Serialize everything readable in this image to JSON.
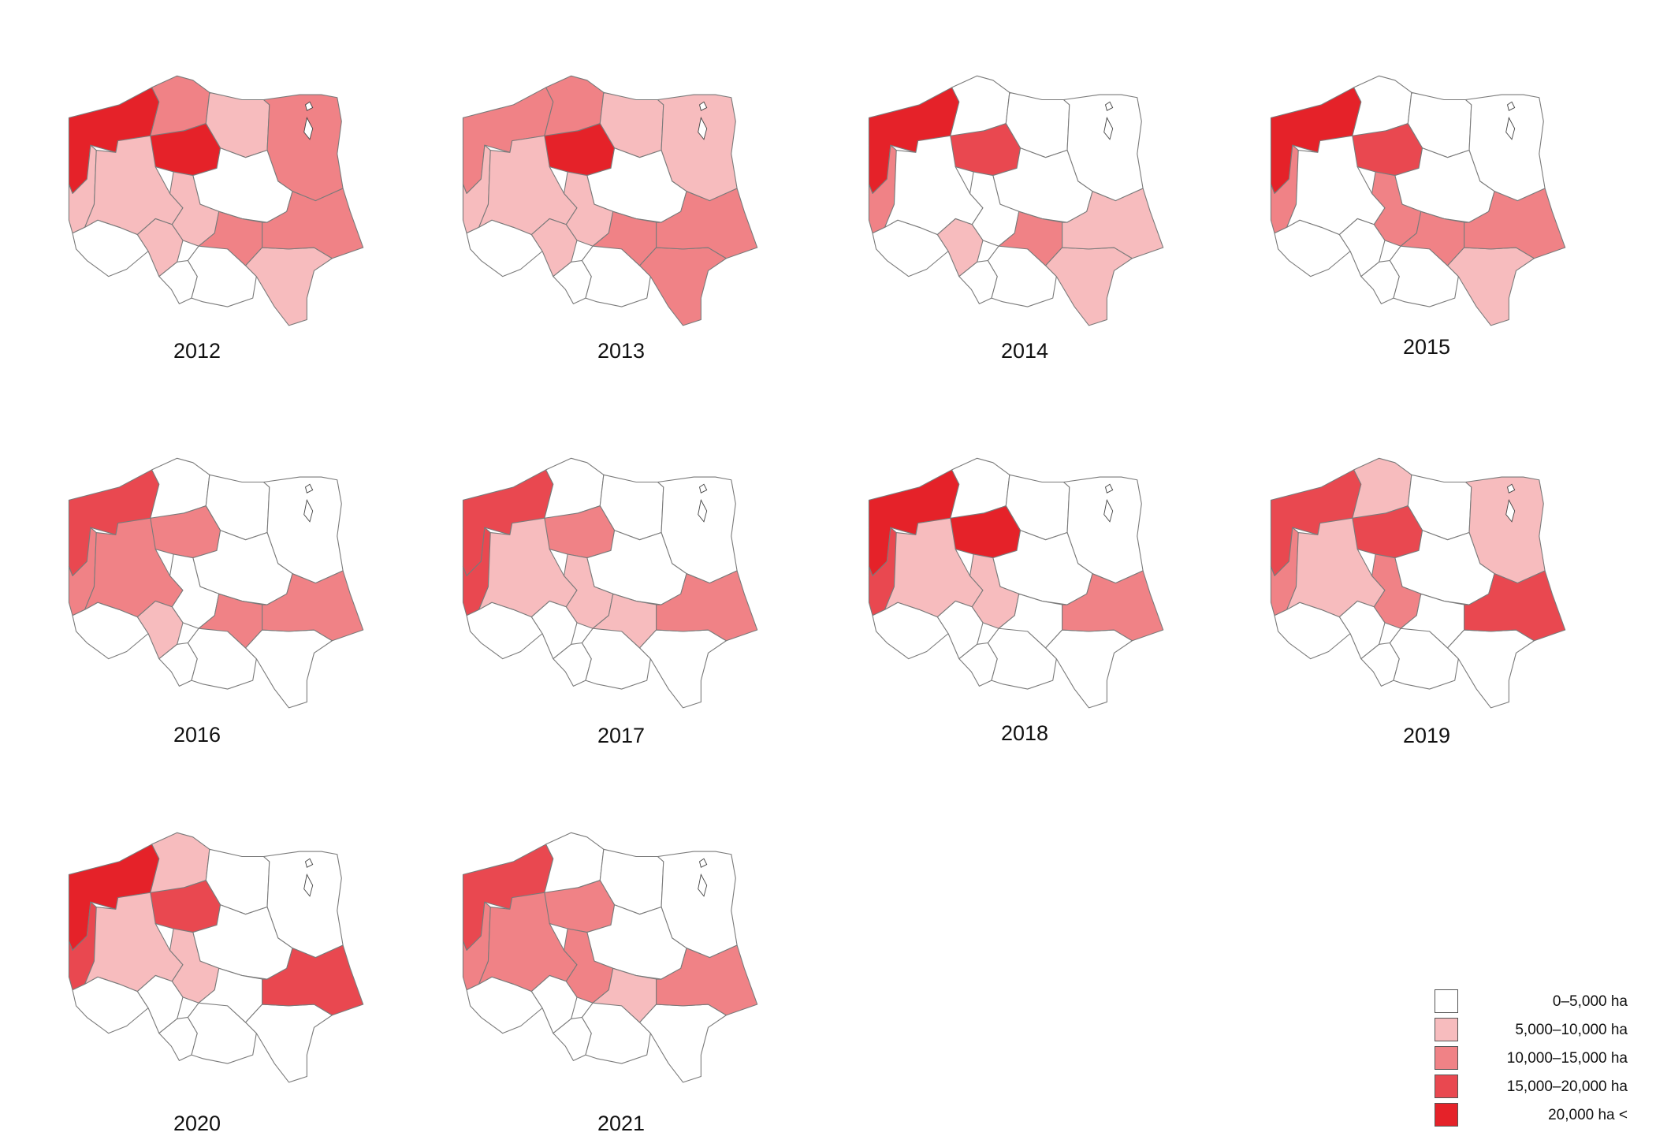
{
  "map": {
    "unit": "ha",
    "classes": [
      {
        "label": "0–5,000 ha",
        "color": "#ffffff"
      },
      {
        "label": "5,000–10,000 ha",
        "color": "#f7bcbe"
      },
      {
        "label": "10,000–15,000 ha",
        "color": "#f08286"
      },
      {
        "label": "15,000–20,000 ha",
        "color": "#e94850"
      },
      {
        "label": "20,000 ha <",
        "color": "#e52229"
      }
    ],
    "region_ids": [
      "ZP",
      "PM",
      "WM",
      "PD",
      "LB",
      "WP",
      "KP",
      "MZ",
      "LD",
      "DS",
      "OP",
      "SL",
      "MP",
      "SK",
      "PK",
      "LU"
    ],
    "panels": [
      {
        "year": "2012",
        "regions": {
          "ZP": 4,
          "PM": 2,
          "WM": 1,
          "PD": 2,
          "LB": 1,
          "WP": 1,
          "KP": 4,
          "MZ": 0,
          "LD": 1,
          "DS": 0,
          "OP": 1,
          "SL": 0,
          "MP": 0,
          "SK": 2,
          "PK": 1,
          "LU": 2
        }
      },
      {
        "year": "2013",
        "regions": {
          "ZP": 2,
          "PM": 2,
          "WM": 1,
          "PD": 1,
          "LB": 1,
          "WP": 1,
          "KP": 4,
          "MZ": 0,
          "LD": 1,
          "DS": 0,
          "OP": 1,
          "SL": 0,
          "MP": 0,
          "SK": 2,
          "PK": 2,
          "LU": 2
        }
      },
      {
        "year": "2014",
        "regions": {
          "ZP": 4,
          "PM": 0,
          "WM": 0,
          "PD": 0,
          "LB": 2,
          "WP": 0,
          "KP": 3,
          "MZ": 0,
          "LD": 0,
          "DS": 0,
          "OP": 1,
          "SL": 0,
          "MP": 0,
          "SK": 2,
          "PK": 1,
          "LU": 1
        }
      },
      {
        "year": "2015",
        "regions": {
          "ZP": 4,
          "PM": 0,
          "WM": 0,
          "PD": 0,
          "LB": 2,
          "WP": 0,
          "KP": 3,
          "MZ": 0,
          "LD": 2,
          "DS": 0,
          "OP": 0,
          "SL": 0,
          "MP": 0,
          "SK": 2,
          "PK": 1,
          "LU": 2
        }
      },
      {
        "year": "2016",
        "regions": {
          "ZP": 3,
          "PM": 0,
          "WM": 0,
          "PD": 0,
          "LB": 2,
          "WP": 2,
          "KP": 2,
          "MZ": 0,
          "LD": 0,
          "DS": 0,
          "OP": 1,
          "SL": 0,
          "MP": 0,
          "SK": 2,
          "PK": 0,
          "LU": 2
        }
      },
      {
        "year": "2017",
        "regions": {
          "ZP": 3,
          "PM": 0,
          "WM": 0,
          "PD": 0,
          "LB": 3,
          "WP": 1,
          "KP": 2,
          "MZ": 0,
          "LD": 1,
          "DS": 0,
          "OP": 0,
          "SL": 0,
          "MP": 0,
          "SK": 1,
          "PK": 0,
          "LU": 2
        }
      },
      {
        "year": "2018",
        "regions": {
          "ZP": 4,
          "PM": 0,
          "WM": 0,
          "PD": 0,
          "LB": 3,
          "WP": 1,
          "KP": 4,
          "MZ": 0,
          "LD": 1,
          "DS": 0,
          "OP": 0,
          "SL": 0,
          "MP": 0,
          "SK": 0,
          "PK": 0,
          "LU": 2
        }
      },
      {
        "year": "2019",
        "regions": {
          "ZP": 3,
          "PM": 1,
          "WM": 0,
          "PD": 1,
          "LB": 2,
          "WP": 1,
          "KP": 3,
          "MZ": 0,
          "LD": 2,
          "DS": 0,
          "OP": 0,
          "SL": 0,
          "MP": 0,
          "SK": 0,
          "PK": 0,
          "LU": 3
        }
      },
      {
        "year": "2020",
        "regions": {
          "ZP": 4,
          "PM": 1,
          "WM": 0,
          "PD": 0,
          "LB": 3,
          "WP": 1,
          "KP": 3,
          "MZ": 0,
          "LD": 1,
          "DS": 0,
          "OP": 0,
          "SL": 0,
          "MP": 0,
          "SK": 0,
          "PK": 0,
          "LU": 3
        }
      },
      {
        "year": "2021",
        "regions": {
          "ZP": 3,
          "PM": 0,
          "WM": 0,
          "PD": 0,
          "LB": 2,
          "WP": 2,
          "KP": 2,
          "MZ": 0,
          "LD": 2,
          "DS": 0,
          "OP": 0,
          "SL": 0,
          "MP": 0,
          "SK": 1,
          "PK": 0,
          "LU": 2
        }
      }
    ]
  }
}
